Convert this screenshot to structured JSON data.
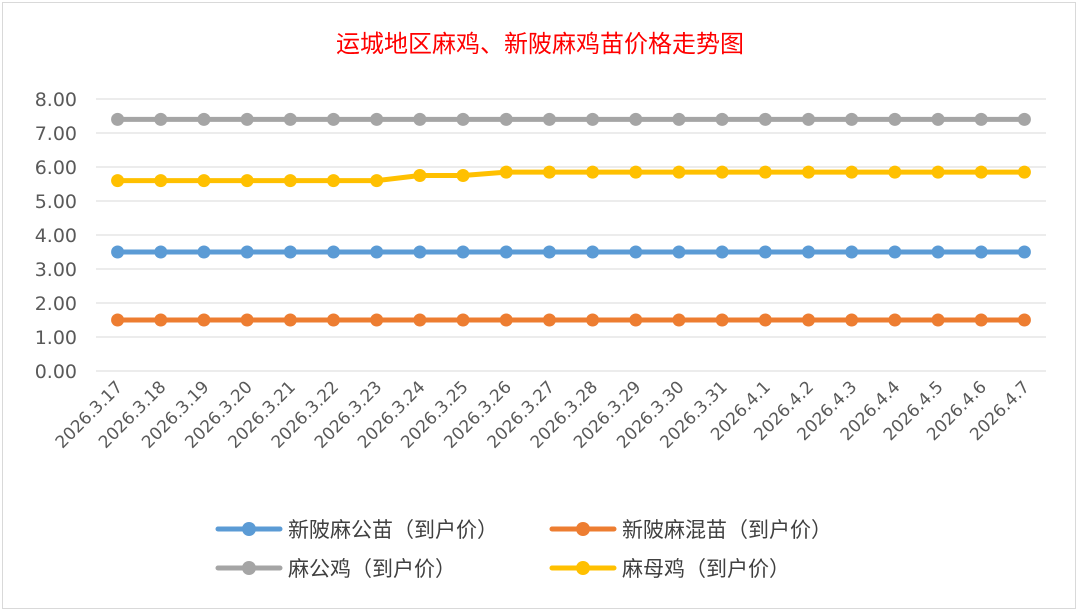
{
  "chart_data": {
    "type": "line",
    "title": "运城地区麻鸡、新陂麻鸡苗价格走势图",
    "xlabel": "",
    "ylabel": "",
    "ylim": [
      0,
      8
    ],
    "yticks": [
      "0.00",
      "1.00",
      "2.00",
      "3.00",
      "4.00",
      "5.00",
      "6.00",
      "7.00",
      "8.00"
    ],
    "grid": true,
    "legend_position": "bottom",
    "categories": [
      "2026.3.17",
      "2026.3.18",
      "2026.3.19",
      "2026.3.20",
      "2026.3.21",
      "2026.3.22",
      "2026.3.23",
      "2026.3.24",
      "2026.3.25",
      "2026.3.26",
      "2026.3.27",
      "2026.3.28",
      "2026.3.29",
      "2026.3.30",
      "2026.3.31",
      "2026.4.1",
      "2026.4.2",
      "2026.4.3",
      "2026.4.4",
      "2026.4.5",
      "2026.4.6",
      "2026.4.7"
    ],
    "series": [
      {
        "name": "新陂麻公苗（到户价）",
        "color": "#5b9bd5",
        "values": [
          3.5,
          3.5,
          3.5,
          3.5,
          3.5,
          3.5,
          3.5,
          3.5,
          3.5,
          3.5,
          3.5,
          3.5,
          3.5,
          3.5,
          3.5,
          3.5,
          3.5,
          3.5,
          3.5,
          3.5,
          3.5,
          3.5
        ]
      },
      {
        "name": "新陂麻混苗（到户价）",
        "color": "#ed7d31",
        "values": [
          1.5,
          1.5,
          1.5,
          1.5,
          1.5,
          1.5,
          1.5,
          1.5,
          1.5,
          1.5,
          1.5,
          1.5,
          1.5,
          1.5,
          1.5,
          1.5,
          1.5,
          1.5,
          1.5,
          1.5,
          1.5,
          1.5
        ]
      },
      {
        "name": "麻公鸡（到户价）",
        "color": "#a5a5a5",
        "values": [
          7.4,
          7.4,
          7.4,
          7.4,
          7.4,
          7.4,
          7.4,
          7.4,
          7.4,
          7.4,
          7.4,
          7.4,
          7.4,
          7.4,
          7.4,
          7.4,
          7.4,
          7.4,
          7.4,
          7.4,
          7.4,
          7.4
        ]
      },
      {
        "name": "麻母鸡（到户价）",
        "color": "#ffc000",
        "values": [
          5.6,
          5.6,
          5.6,
          5.6,
          5.6,
          5.6,
          5.6,
          5.75,
          5.75,
          5.85,
          5.85,
          5.85,
          5.85,
          5.85,
          5.85,
          5.85,
          5.85,
          5.85,
          5.85,
          5.85,
          5.85,
          5.85
        ]
      }
    ]
  }
}
